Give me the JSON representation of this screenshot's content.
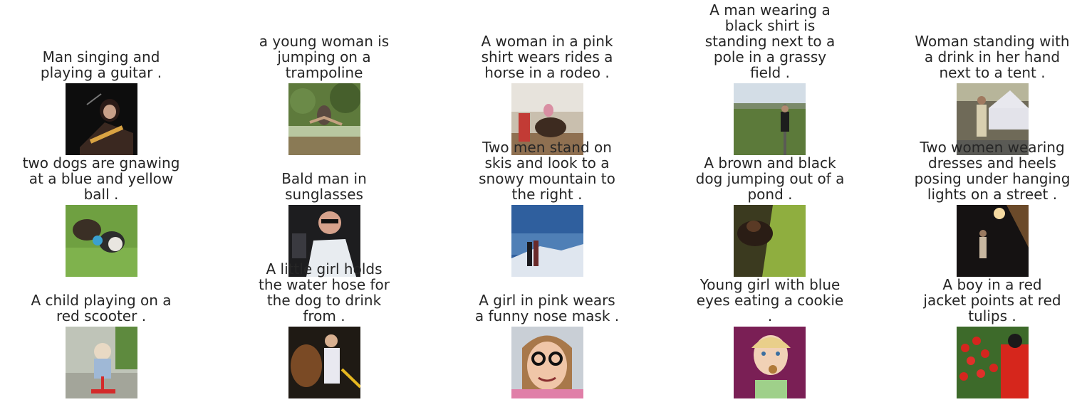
{
  "figure": {
    "rows": [
      [
        {
          "caption": "Man singing and\nplaying a guitar .",
          "image": "man-singing-guitar-photo"
        },
        {
          "caption": "a young woman is\njumping on a\ntrampoline",
          "image": "woman-jumping-trampoline-photo"
        },
        {
          "caption": "A woman in a pink\nshirt wears rides a\nhorse in a rodeo .",
          "image": "woman-horse-rodeo-photo"
        },
        {
          "caption": "A man wearing a\nblack shirt is\nstanding next to a\npole in a grassy\nfield .",
          "image": "man-grassy-field-photo"
        },
        {
          "caption": "Woman standing with\na drink in her hand\nnext to a tent .",
          "image": "woman-tent-photo"
        }
      ],
      [
        {
          "caption": "two dogs are gnawing\nat a blue and yellow\nball .",
          "image": "dogs-ball-photo"
        },
        {
          "caption": "Bald man in\nsunglasses",
          "image": "bald-man-sunglasses-photo"
        },
        {
          "caption": "Two men stand on\nskis and look to a\nsnowy mountain to\nthe right .",
          "image": "skiers-mountain-photo"
        },
        {
          "caption": "A brown and black\ndog jumping out of a\npond .",
          "image": "dog-pond-photo"
        },
        {
          "caption": "Two women wearing\ndresses and heels\nposing under hanging\nlights on a street .",
          "image": "women-street-lights-photo"
        }
      ],
      [
        {
          "caption": "A child playing on a\nred scooter .",
          "image": "child-scooter-photo"
        },
        {
          "caption": "A little girl holds\nthe water hose for\nthe dog to drink\nfrom .",
          "image": "girl-hose-dog-photo"
        },
        {
          "caption": "A girl in pink wears\na funny nose mask .",
          "image": "girl-nose-mask-photo"
        },
        {
          "caption": "Young girl with blue\neyes eating a cookie\n.",
          "image": "girl-cookie-photo"
        },
        {
          "caption": "A boy in a red\njacket points at red\ntulips .",
          "image": "boy-tulips-photo"
        }
      ]
    ]
  }
}
